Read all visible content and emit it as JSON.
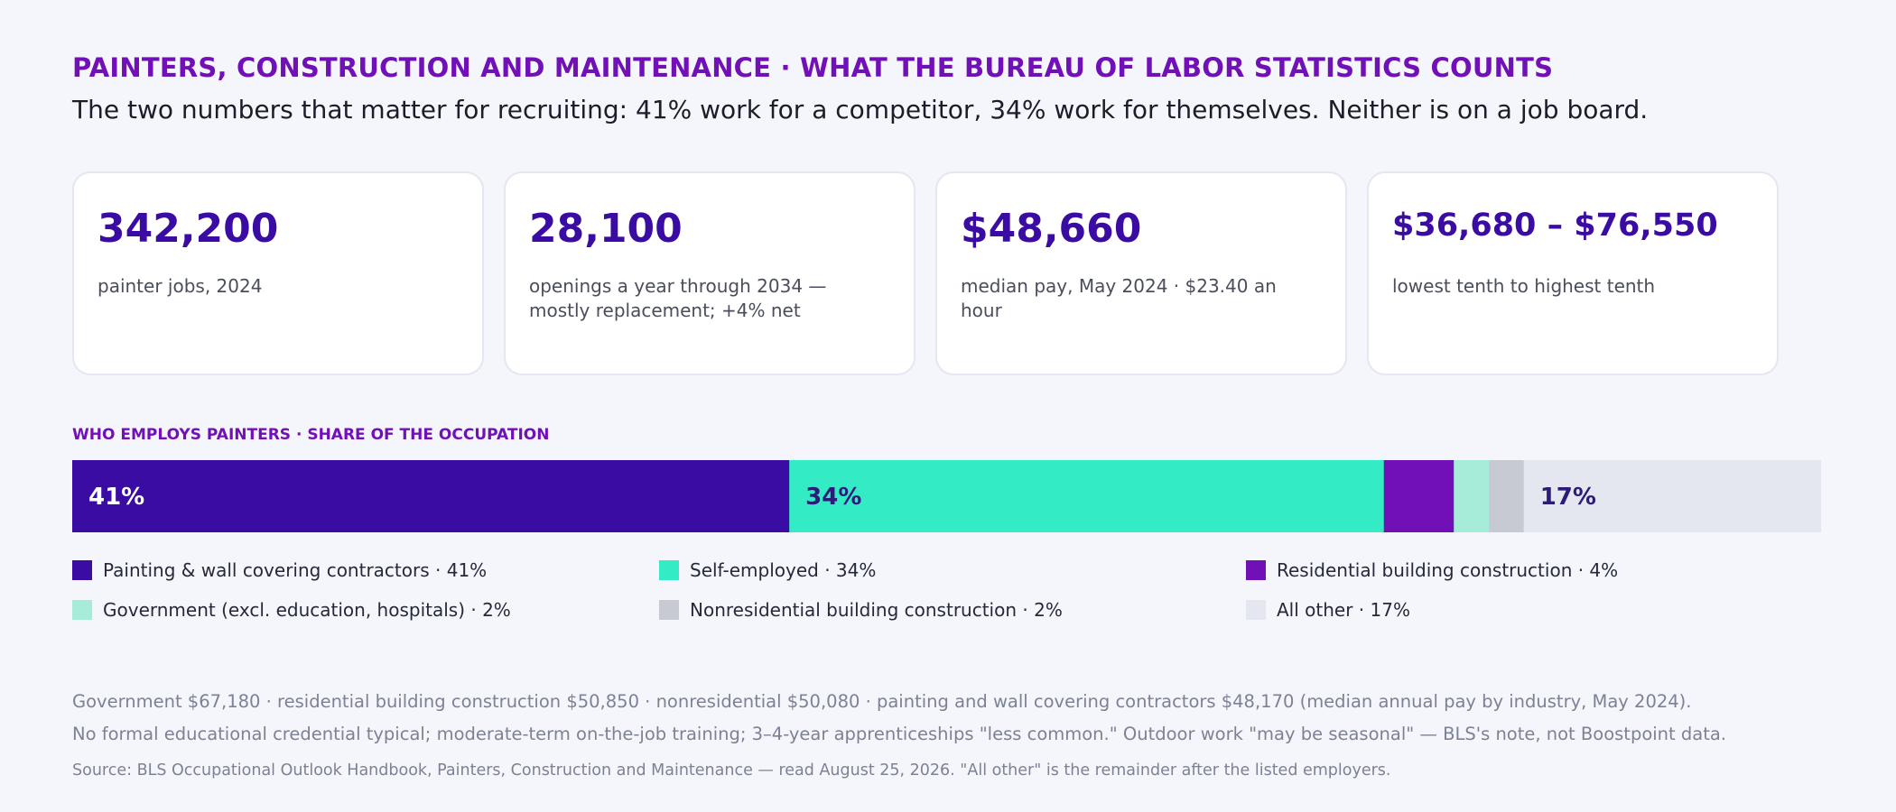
{
  "eyebrow": "PAINTERS, CONSTRUCTION AND MAINTENANCE · WHAT THE BUREAU OF LABOR STATISTICS COUNTS",
  "headline": "The two numbers that matter for recruiting: 41% work for a competitor, 34% work for themselves. Neither is on a job board.",
  "stats": [
    {
      "value": "342,200",
      "label": "painter jobs, 2024"
    },
    {
      "value": "28,100",
      "label": "openings a year through 2034 — mostly replacement; +4% net"
    },
    {
      "value": "$48,660",
      "label": "median pay, May 2024 · $23.40 an hour"
    },
    {
      "value": "$36,680 – $76,550",
      "label": "lowest tenth to highest tenth"
    }
  ],
  "section_label": "WHO EMPLOYS PAINTERS · SHARE OF THE OCCUPATION",
  "chart_data": {
    "type": "bar",
    "orientation": "horizontal-stacked-100",
    "title": "WHO EMPLOYS PAINTERS · SHARE OF THE OCCUPATION",
    "unit": "%",
    "total": 100,
    "series": [
      {
        "legend": "Painting & wall covering contractors · 41%",
        "value": 41,
        "bar_label": "41%",
        "color": "#3a0ca3",
        "label_color": "#ffffff"
      },
      {
        "legend": "Self-employed · 34%",
        "value": 34,
        "bar_label": "34%",
        "color": "#33ebc4",
        "label_color": "#2d1b7a"
      },
      {
        "legend": "Residential building construction · 4%",
        "value": 4,
        "bar_label": "",
        "color": "#7210b8",
        "label_color": "#ffffff"
      },
      {
        "legend": "Government (excl. education, hospitals) · 2%",
        "value": 2,
        "bar_label": "",
        "color": "#a6ecd9",
        "label_color": "#2d1b7a"
      },
      {
        "legend": "Nonresidential building construction · 2%",
        "value": 2,
        "bar_label": "",
        "color": "#c8cad3",
        "label_color": "#2d1b7a"
      },
      {
        "legend": "All other · 17%",
        "value": 17,
        "bar_label": "17%",
        "color": "#e4e6f0",
        "label_color": "#2d1b7a"
      }
    ],
    "legend_placement": "bottom"
  },
  "notes": [
    "Government $67,180 · residential building construction $50,850 · nonresidential $50,080 · painting and wall covering contractors $48,170 (median annual pay by industry, May 2024).",
    "No formal educational credential typical; moderate-term on-the-job training; 3–4-year apprenticeships \"less common.\" Outdoor work \"may be seasonal\" — BLS's note, not Boostpoint data."
  ],
  "source": "Source: BLS Occupational Outlook Handbook, Painters, Construction and Maintenance — read August 25, 2026. \"All other\" is the remainder after the listed employers."
}
